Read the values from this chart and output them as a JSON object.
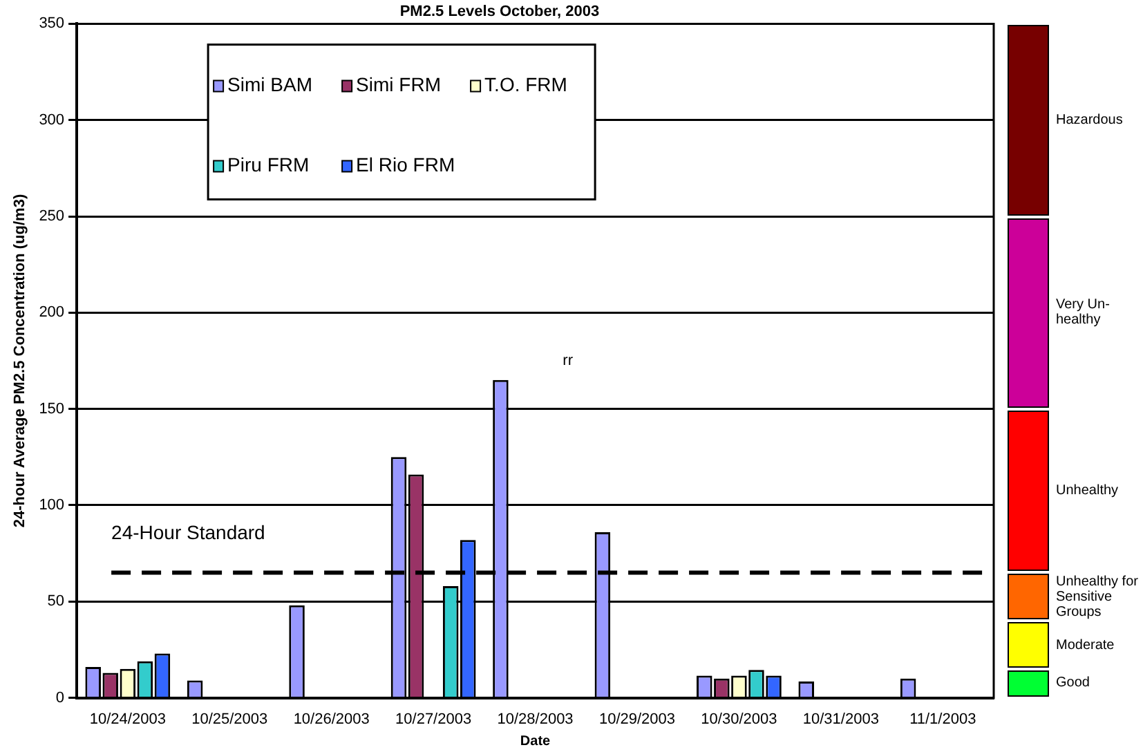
{
  "chart_data": {
    "type": "bar",
    "title": "PM2.5 Levels October, 2003",
    "xlabel": "Date",
    "ylabel": "24-hour Average PM2.5 Concentration (ug/m3)",
    "categories": [
      "10/24/2003",
      "10/25/2003",
      "10/26/2003",
      "10/27/2003",
      "10/28/2003",
      "10/29/2003",
      "10/30/2003",
      "10/31/2003",
      "11/1/2003"
    ],
    "series": [
      {
        "name": "Simi BAM",
        "color": "#9999ff",
        "values": [
          16,
          9,
          48,
          125,
          165,
          86,
          11.5,
          8.5,
          10
        ]
      },
      {
        "name": "Simi FRM",
        "color": "#993366",
        "values": [
          13,
          null,
          null,
          116,
          null,
          null,
          10,
          null,
          null
        ]
      },
      {
        "name": "T.O. FRM",
        "color": "#ffffcc",
        "values": [
          15,
          null,
          null,
          null,
          null,
          null,
          11.5,
          null,
          null
        ]
      },
      {
        "name": "Piru FRM",
        "color": "#33cccc",
        "values": [
          19,
          null,
          null,
          58,
          null,
          null,
          14.5,
          null,
          null
        ]
      },
      {
        "name": "El Rio FRM",
        "color": "#3366ff",
        "values": [
          23,
          null,
          null,
          82,
          null,
          null,
          11.5,
          null,
          null
        ]
      }
    ],
    "ylim": [
      0,
      350
    ],
    "yticks": [
      0,
      50,
      100,
      150,
      200,
      250,
      300,
      350
    ],
    "grid": "y",
    "legend": "top",
    "ref_lines": [
      {
        "axis": "y",
        "value": 65,
        "label": "24-Hour Standard",
        "color": "#000000",
        "line_style": "dashed"
      }
    ],
    "annotations": [
      "rr",
      "Hazardous",
      "Very Un-healthy",
      "Unhealthy",
      "Unhealthy for Sensitive Groups",
      "Moderate",
      "Good"
    ]
  }
}
